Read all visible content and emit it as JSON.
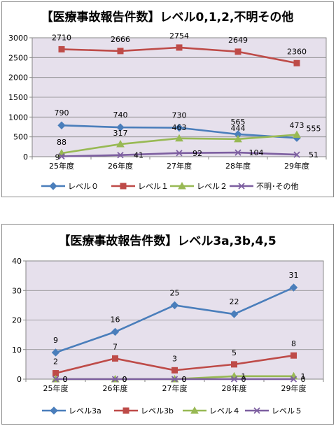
{
  "chart_data": [
    {
      "type": "line",
      "title": "【医療事故報告件数】レベル0,1,2,不明その他",
      "xlabel": "",
      "ylabel": "",
      "categories": [
        "25年度",
        "26年度",
        "27年度",
        "28年度",
        "29年度"
      ],
      "ylim": [
        0,
        3000
      ],
      "yticks": [
        0,
        500,
        1000,
        1500,
        2000,
        2500,
        3000
      ],
      "grid": true,
      "legend_position": "bottom",
      "series": [
        {
          "name": "レベル０",
          "color": "#4a7ebb",
          "marker": "diamond",
          "values": [
            790,
            740,
            730,
            565,
            473
          ]
        },
        {
          "name": "レベル１",
          "color": "#be4b48",
          "marker": "square",
          "values": [
            2710,
            2666,
            2754,
            2649,
            2360
          ]
        },
        {
          "name": "レベル２",
          "color": "#98b954",
          "marker": "triangle",
          "values": [
            88,
            317,
            463,
            444,
            555
          ]
        },
        {
          "name": "不明･その他",
          "color": "#7d5fa0",
          "marker": "x",
          "values": [
            9,
            41,
            92,
            104,
            51
          ]
        }
      ]
    },
    {
      "type": "line",
      "title": "【医療事故報告件数】レベル3a,3b,4,5",
      "xlabel": "",
      "ylabel": "",
      "categories": [
        "25年度",
        "26年度",
        "27年度",
        "28年度",
        "29年度"
      ],
      "ylim": [
        0,
        40
      ],
      "yticks": [
        0,
        10,
        20,
        30,
        40
      ],
      "grid": true,
      "legend_position": "bottom",
      "series": [
        {
          "name": "レベル3a",
          "color": "#4a7ebb",
          "marker": "diamond",
          "values": [
            9,
            16,
            25,
            22,
            31
          ]
        },
        {
          "name": "レベル3b",
          "color": "#be4b48",
          "marker": "square",
          "values": [
            2,
            7,
            3,
            5,
            8
          ]
        },
        {
          "name": "レベル４",
          "color": "#98b954",
          "marker": "triangle",
          "values": [
            0,
            0,
            0,
            1,
            1
          ]
        },
        {
          "name": "レベル５",
          "color": "#7d5fa0",
          "marker": "x",
          "values": [
            0,
            0,
            0,
            0,
            0
          ]
        }
      ]
    }
  ]
}
